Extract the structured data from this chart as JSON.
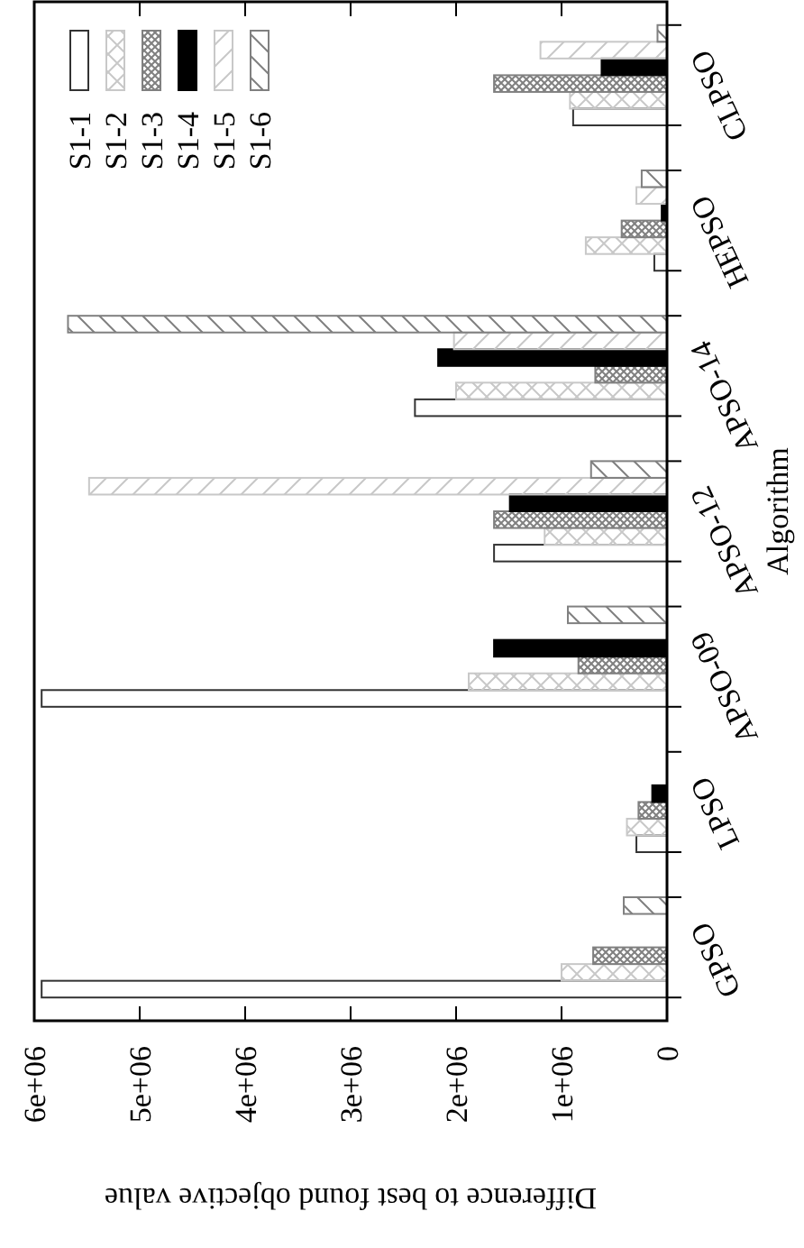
{
  "chart_data": {
    "type": "bar",
    "orientation": "horizontal",
    "xlabel": "Difference to best found objective value",
    "ylabel": "Algorithm",
    "categories": [
      "CLPSO",
      "HEPSO",
      "APSO-14",
      "APSO-12",
      "APSO-09",
      "LPSO",
      "GPSO"
    ],
    "series": [
      {
        "name": "S1-1",
        "color": "#333333",
        "values": [
          890000,
          120000,
          2390000,
          1640000,
          5930000,
          290000,
          5930000
        ]
      },
      {
        "name": "S1-2",
        "color": "#c8c8c8",
        "values": [
          920000,
          770000,
          2000000,
          1160000,
          1880000,
          380000,
          1000000
        ]
      },
      {
        "name": "S1-3",
        "color": "#808080",
        "values": [
          1640000,
          430000,
          680000,
          1640000,
          840000,
          270000,
          700000
        ]
      },
      {
        "name": "S1-4",
        "color": "#000000",
        "values": [
          620000,
          50000,
          2170000,
          1490000,
          1640000,
          140000,
          0
        ]
      },
      {
        "name": "S1-5",
        "color": "#c8c8c8",
        "values": [
          1200000,
          290000,
          2020000,
          5480000,
          0,
          0,
          0
        ]
      },
      {
        "name": "S1-6",
        "color": "#808080",
        "values": [
          90000,
          240000,
          5680000,
          720000,
          940000,
          0,
          410000
        ]
      }
    ],
    "xlim": [
      6000000,
      0
    ],
    "xticks": [
      {
        "value": 6000000,
        "label": "6e+06"
      },
      {
        "value": 5000000,
        "label": "5e+06"
      },
      {
        "value": 4000000,
        "label": "4e+06"
      },
      {
        "value": 3000000,
        "label": "3e+06"
      },
      {
        "value": 2000000,
        "label": "2e+06"
      },
      {
        "value": 1000000,
        "label": "1e+06"
      },
      0
    ],
    "legend": "top left"
  }
}
